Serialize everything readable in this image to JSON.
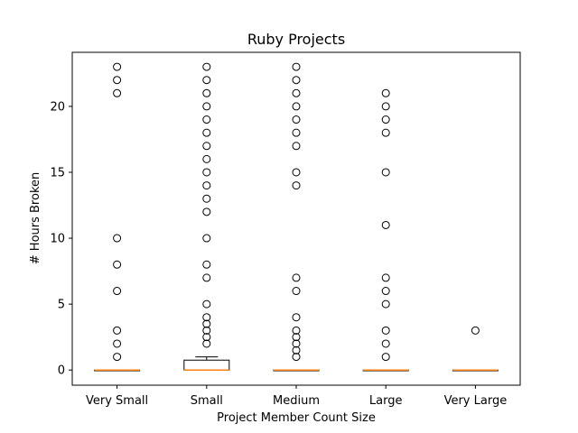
{
  "chart_data": {
    "type": "box",
    "title": "Ruby Projects",
    "xlabel": "Project Member Count Size",
    "ylabel": "# Hours Broken",
    "ylim": [
      -1.15,
      24.1
    ],
    "yticks": [
      0,
      5,
      10,
      15,
      20
    ],
    "grid": false,
    "colors": {
      "median": "#ff7f0e",
      "box": "#000000",
      "flier": "#000000",
      "background": "#ffffff"
    },
    "categories": [
      "Very Small",
      "Small",
      "Medium",
      "Large",
      "Very Large"
    ],
    "boxes": [
      {
        "name": "Very Small",
        "q1": 0,
        "median": 0,
        "q3": 0,
        "whisker_low": 0,
        "whisker_high": 0,
        "fliers": [
          1,
          2,
          3,
          6,
          8,
          10,
          21,
          22,
          23
        ]
      },
      {
        "name": "Small",
        "q1": 0,
        "median": 0,
        "q3": 0.75,
        "whisker_low": 0,
        "whisker_high": 1,
        "fliers": [
          2,
          2.5,
          3,
          3.5,
          4,
          5,
          7,
          8,
          10,
          12,
          13,
          14,
          15,
          16,
          17,
          18,
          19,
          20,
          21,
          22,
          23
        ]
      },
      {
        "name": "Medium",
        "q1": 0,
        "median": 0,
        "q3": 0,
        "whisker_low": 0,
        "whisker_high": 0,
        "fliers": [
          1,
          1.5,
          2,
          2.5,
          3,
          4,
          6,
          7,
          14,
          15,
          17,
          18,
          19,
          20,
          21,
          22,
          23
        ]
      },
      {
        "name": "Large",
        "q1": 0,
        "median": 0,
        "q3": 0,
        "whisker_low": 0,
        "whisker_high": 0,
        "fliers": [
          1,
          2,
          3,
          5,
          6,
          7,
          11,
          15,
          18,
          19,
          20,
          21
        ]
      },
      {
        "name": "Very Large",
        "q1": 0,
        "median": 0,
        "q3": 0,
        "whisker_low": 0,
        "whisker_high": 0,
        "fliers": [
          3
        ]
      }
    ]
  }
}
